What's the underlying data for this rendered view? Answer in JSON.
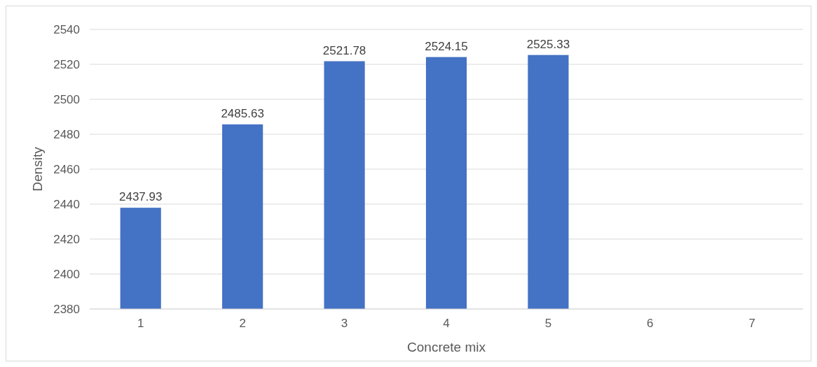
{
  "chart_data": {
    "type": "bar",
    "xlabel": "Concrete mix",
    "ylabel": "Density",
    "categories": [
      "1",
      "2",
      "3",
      "4",
      "5",
      "6",
      "7"
    ],
    "values": [
      2437.93,
      2485.63,
      2521.78,
      2524.15,
      2525.33,
      null,
      null
    ],
    "color": "#4472c4",
    "ylim": [
      2380,
      2540
    ],
    "yticks": [
      2380,
      2400,
      2420,
      2440,
      2460,
      2480,
      2500,
      2520,
      2540
    ],
    "grid": "y",
    "data_labels": true
  }
}
